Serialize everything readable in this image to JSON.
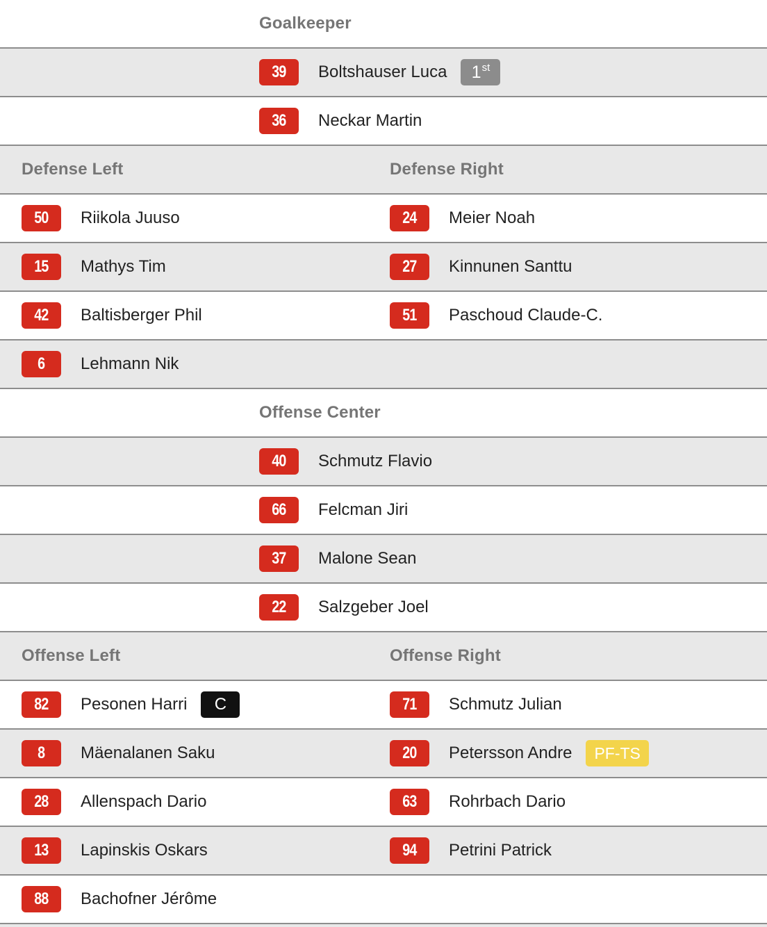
{
  "colors": {
    "accent_red": "#d52b1e",
    "row_gray": "#e8e8e8",
    "divider": "#8d8d8d",
    "header_text": "#757575",
    "name_text": "#222222",
    "starter_badge_bg": "#8c8c8c",
    "captain_badge_bg": "#111111",
    "pfts_badge_bg": "#f3d44b",
    "badge_text": "#ffffff"
  },
  "rows": [
    {
      "kind": "header",
      "bg": "white",
      "cells": [
        {
          "pos": "center",
          "label": "Goalkeeper"
        }
      ]
    },
    {
      "kind": "players",
      "bg": "gray",
      "cells": [
        {
          "pos": "center",
          "number": "39",
          "name": "Boltshauser Luca",
          "tag": {
            "style": "starter",
            "text": "1",
            "sup": "st"
          }
        }
      ]
    },
    {
      "kind": "players",
      "bg": "white",
      "cells": [
        {
          "pos": "center",
          "number": "36",
          "name": "Neckar Martin"
        }
      ]
    },
    {
      "kind": "header",
      "bg": "gray",
      "cells": [
        {
          "pos": "left",
          "label": "Defense Left"
        },
        {
          "pos": "right",
          "label": "Defense Right"
        }
      ]
    },
    {
      "kind": "players",
      "bg": "white",
      "cells": [
        {
          "pos": "left",
          "number": "50",
          "name": "Riikola Juuso"
        },
        {
          "pos": "right",
          "number": "24",
          "name": "Meier Noah"
        }
      ]
    },
    {
      "kind": "players",
      "bg": "gray",
      "cells": [
        {
          "pos": "left",
          "number": "15",
          "name": "Mathys Tim"
        },
        {
          "pos": "right",
          "number": "27",
          "name": "Kinnunen Santtu"
        }
      ]
    },
    {
      "kind": "players",
      "bg": "white",
      "cells": [
        {
          "pos": "left",
          "number": "42",
          "name": "Baltisberger Phil"
        },
        {
          "pos": "right",
          "number": "51",
          "name": "Paschoud Claude-C."
        }
      ]
    },
    {
      "kind": "players",
      "bg": "gray",
      "cells": [
        {
          "pos": "left",
          "number": "6",
          "name": "Lehmann Nik"
        }
      ]
    },
    {
      "kind": "header",
      "bg": "white",
      "cells": [
        {
          "pos": "center",
          "label": "Offense Center"
        }
      ]
    },
    {
      "kind": "players",
      "bg": "gray",
      "cells": [
        {
          "pos": "center",
          "number": "40",
          "name": "Schmutz Flavio"
        }
      ]
    },
    {
      "kind": "players",
      "bg": "white",
      "cells": [
        {
          "pos": "center",
          "number": "66",
          "name": "Felcman Jiri"
        }
      ]
    },
    {
      "kind": "players",
      "bg": "gray",
      "cells": [
        {
          "pos": "center",
          "number": "37",
          "name": "Malone Sean"
        }
      ]
    },
    {
      "kind": "players",
      "bg": "white",
      "cells": [
        {
          "pos": "center",
          "number": "22",
          "name": "Salzgeber Joel"
        }
      ]
    },
    {
      "kind": "header",
      "bg": "gray",
      "cells": [
        {
          "pos": "left",
          "label": "Offense Left"
        },
        {
          "pos": "right",
          "label": "Offense Right"
        }
      ]
    },
    {
      "kind": "players",
      "bg": "white",
      "cells": [
        {
          "pos": "left",
          "number": "82",
          "name": "Pesonen Harri",
          "tag": {
            "style": "captain",
            "text": "C"
          }
        },
        {
          "pos": "right",
          "number": "71",
          "name": "Schmutz Julian"
        }
      ]
    },
    {
      "kind": "players",
      "bg": "gray",
      "cells": [
        {
          "pos": "left",
          "number": "8",
          "name": "Mäenalanen Saku"
        },
        {
          "pos": "right",
          "number": "20",
          "name": "Petersson Andre",
          "tag": {
            "style": "pfts",
            "text": "PF-TS"
          }
        }
      ]
    },
    {
      "kind": "players",
      "bg": "white",
      "cells": [
        {
          "pos": "left",
          "number": "28",
          "name": "Allenspach Dario"
        },
        {
          "pos": "right",
          "number": "63",
          "name": "Rohrbach Dario"
        }
      ]
    },
    {
      "kind": "players",
      "bg": "gray",
      "cells": [
        {
          "pos": "left",
          "number": "13",
          "name": "Lapinskis Oskars"
        },
        {
          "pos": "right",
          "number": "94",
          "name": "Petrini Patrick"
        }
      ]
    },
    {
      "kind": "players",
      "bg": "white",
      "cells": [
        {
          "pos": "left",
          "number": "88",
          "name": "Bachofner Jérôme"
        }
      ]
    }
  ]
}
